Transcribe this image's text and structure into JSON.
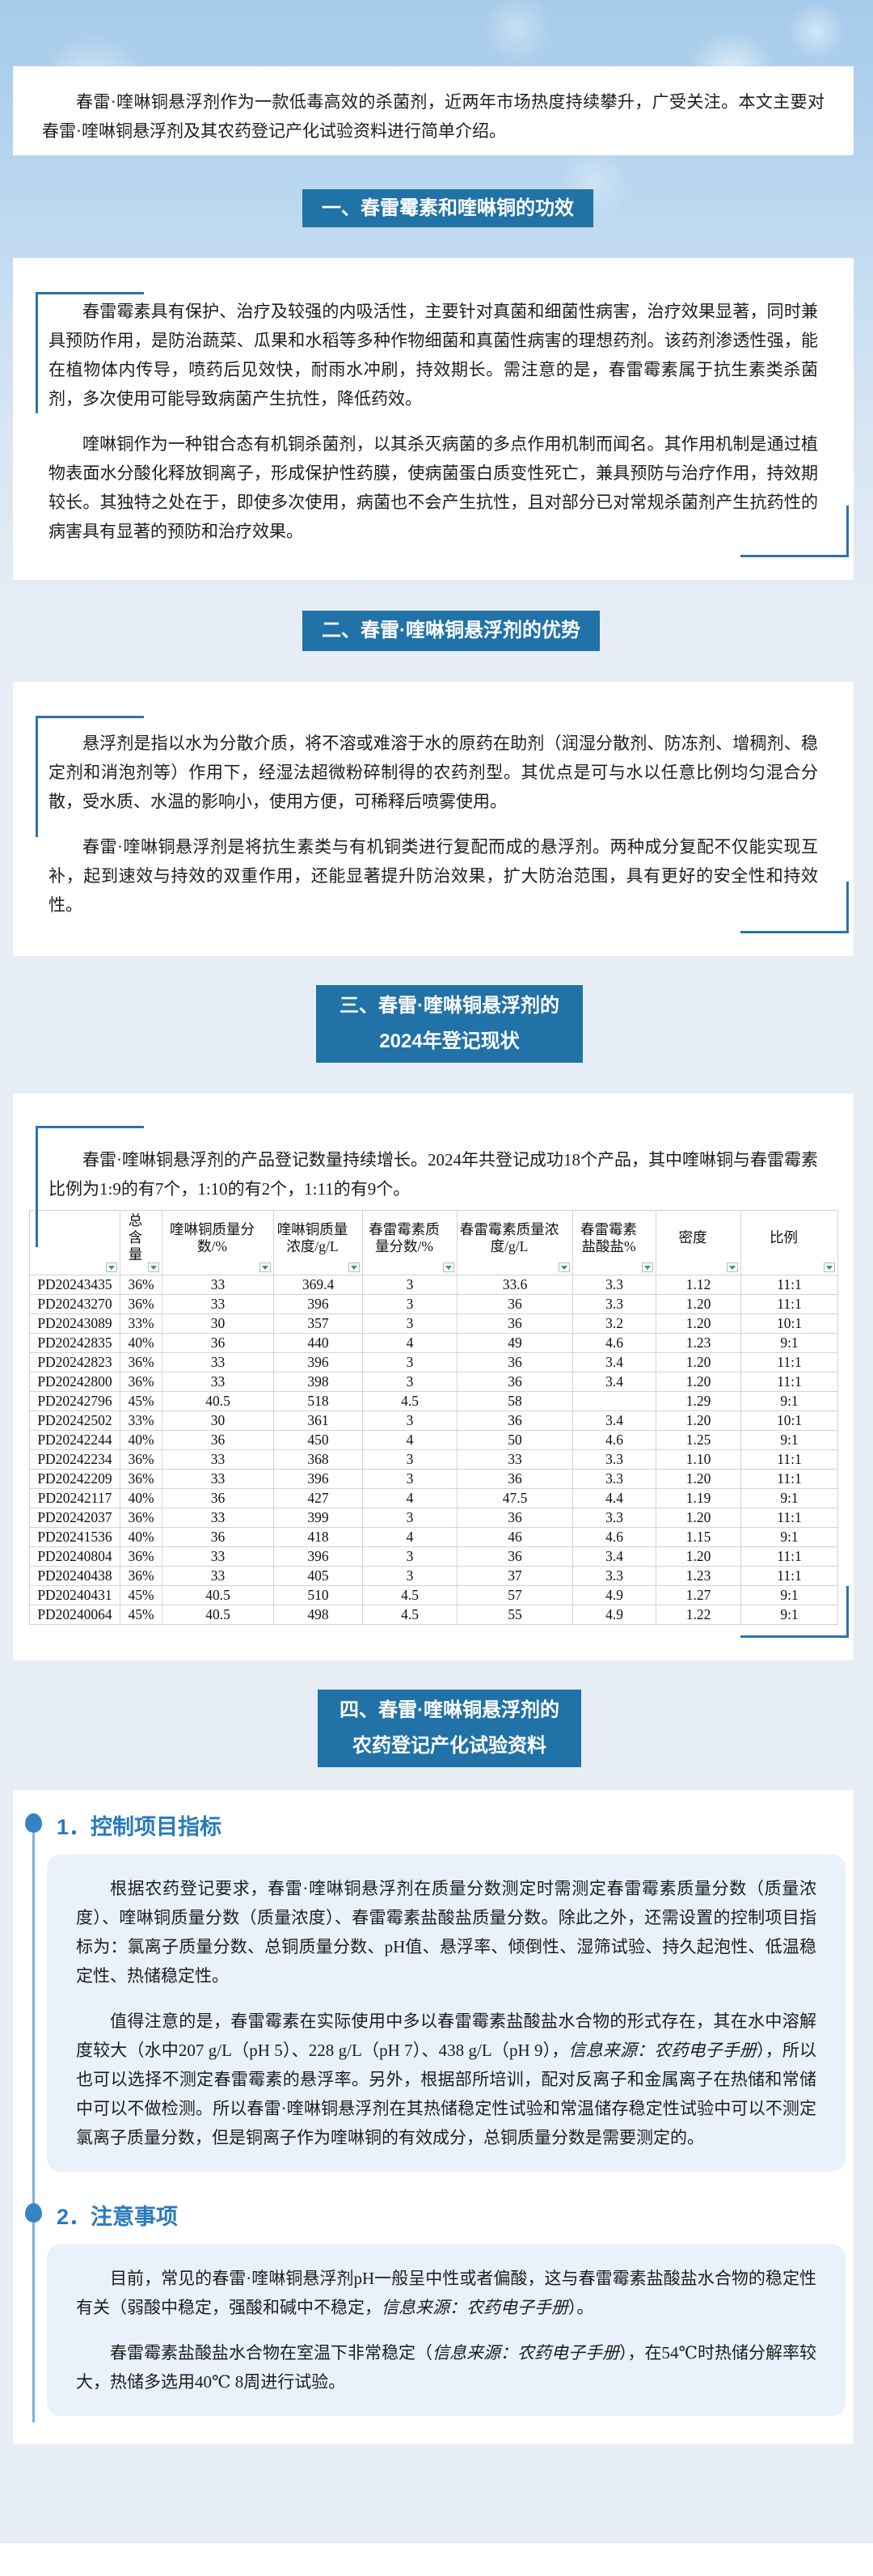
{
  "intro": "春雷·喹啉铜悬浮剂作为一款低毒高效的杀菌剂，近两年市场热度持续攀升，广受关注。本文主要对春雷·喹啉铜悬浮剂及其农药登记产化试验资料进行简单介绍。",
  "colors": {
    "section_header_bg": "#2172a7",
    "subsection_heading": "#2a7abc",
    "subsection_box_bg": "#e9f1fa",
    "corner_bracket": "#2e73a9",
    "filter_triangle": "#2f9e57",
    "hero_top": "#a6cbea",
    "page_bottom": "#e7edf5"
  },
  "icons": {
    "filter_dropdown": "green down-triangle in small square (Excel-style autofilter button)",
    "drop_bullet": "blue water-drop bullet"
  },
  "sections": {
    "s1": {
      "title": "一、春雷霉素和喹啉铜的功效",
      "paragraphs": [
        "春雷霉素具有保护、治疗及较强的内吸活性，主要针对真菌和细菌性病害，治疗效果显著，同时兼具预防作用，是防治蔬菜、瓜果和水稻等多种作物细菌和真菌性病害的理想药剂。该药剂渗透性强，能在植物体内传导，喷药后见效快，耐雨水冲刷，持效期长。需注意的是，春雷霉素属于抗生素类杀菌剂，多次使用可能导致病菌产生抗性，降低药效。",
        "喹啉铜作为一种钳合态有机铜杀菌剂，以其杀灭病菌的多点作用机制而闻名。其作用机制是通过植物表面水分酸化释放铜离子，形成保护性药膜，使病菌蛋白质变性死亡，兼具预防与治疗作用，持效期较长。其独特之处在于，即使多次使用，病菌也不会产生抗性，且对部分已对常规杀菌剂产生抗药性的病害具有显著的预防和治疗效果。"
      ]
    },
    "s2": {
      "title": "二、春雷·喹啉铜悬浮剂的优势",
      "paragraphs": [
        "悬浮剂是指以水为分散介质，将不溶或难溶于水的原药在助剂（润湿分散剂、防冻剂、增稠剂、稳定剂和消泡剂等）作用下，经湿法超微粉碎制得的农药剂型。其优点是可与水以任意比例均匀混合分散，受水质、水温的影响小，使用方便，可稀释后喷雾使用。",
        "春雷·喹啉铜悬浮剂是将抗生素类与有机铜类进行复配而成的悬浮剂。两种成分复配不仅能实现互补，起到速效与持效的双重作用，还能显著提升防治效果，扩大防治范围，具有更好的安全性和持效性。"
      ]
    },
    "s3": {
      "title_line1": "三、春雷·喹啉铜悬浮剂的",
      "title_line2": "2024年登记现状",
      "paragraphs": [
        "春雷·喹啉铜悬浮剂的产品登记数量持续增长。2024年共登记成功18个产品，其中喹啉铜与春雷霉素比例为1:9的有7个，1:10的有2个，1:11的有9个。"
      ],
      "table": {
        "headers": [
          "",
          "总含量",
          "喹啉铜质量分数/%",
          "喹啉铜质量浓度/g/L",
          "春雷霉素质量分数/%",
          "春雷霉素质量浓度/g/L",
          "春雷霉素盐酸盐%",
          "密度",
          "比例"
        ],
        "rows": [
          [
            "PD20243435",
            "36%",
            "33",
            "369.4",
            "3",
            "33.6",
            "3.3",
            "1.12",
            "11:1"
          ],
          [
            "PD20243270",
            "36%",
            "33",
            "396",
            "3",
            "36",
            "3.3",
            "1.20",
            "11:1"
          ],
          [
            "PD20243089",
            "33%",
            "30",
            "357",
            "3",
            "36",
            "3.2",
            "1.20",
            "10:1"
          ],
          [
            "PD20242835",
            "40%",
            "36",
            "440",
            "4",
            "49",
            "4.6",
            "1.23",
            "9:1"
          ],
          [
            "PD20242823",
            "36%",
            "33",
            "396",
            "3",
            "36",
            "3.4",
            "1.20",
            "11:1"
          ],
          [
            "PD20242800",
            "36%",
            "33",
            "398",
            "3",
            "36",
            "3.4",
            "1.20",
            "11:1"
          ],
          [
            "PD20242796",
            "45%",
            "40.5",
            "518",
            "4.5",
            "58",
            "",
            "1.29",
            "9:1"
          ],
          [
            "PD20242502",
            "33%",
            "30",
            "361",
            "3",
            "36",
            "3.4",
            "1.20",
            "10:1"
          ],
          [
            "PD20242244",
            "40%",
            "36",
            "450",
            "4",
            "50",
            "4.6",
            "1.25",
            "9:1"
          ],
          [
            "PD20242234",
            "36%",
            "33",
            "368",
            "3",
            "33",
            "3.3",
            "1.10",
            "11:1"
          ],
          [
            "PD20242209",
            "36%",
            "33",
            "396",
            "3",
            "36",
            "3.3",
            "1.20",
            "11:1"
          ],
          [
            "PD20242117",
            "40%",
            "36",
            "427",
            "4",
            "47.5",
            "4.4",
            "1.19",
            "9:1"
          ],
          [
            "PD20242037",
            "36%",
            "33",
            "399",
            "3",
            "36",
            "3.3",
            "1.20",
            "11:1"
          ],
          [
            "PD20241536",
            "40%",
            "36",
            "418",
            "4",
            "46",
            "4.6",
            "1.15",
            "9:1"
          ],
          [
            "PD20240804",
            "36%",
            "33",
            "396",
            "3",
            "36",
            "3.4",
            "1.20",
            "11:1"
          ],
          [
            "PD20240438",
            "36%",
            "33",
            "405",
            "3",
            "37",
            "3.3",
            "1.23",
            "11:1"
          ],
          [
            "PD20240431",
            "45%",
            "40.5",
            "510",
            "4.5",
            "57",
            "4.9",
            "1.27",
            "9:1"
          ],
          [
            "PD20240064",
            "45%",
            "40.5",
            "498",
            "4.5",
            "55",
            "4.9",
            "1.22",
            "9:1"
          ]
        ]
      }
    },
    "s4": {
      "title_line1": "四、春雷·喹啉铜悬浮剂的",
      "title_line2": "农药登记产化试验资料",
      "subsections": [
        {
          "heading": "1．控制项目指标",
          "paragraphs": [
            [
              {
                "t": "根据农药登记要求，春雷·喹啉铜悬浮剂在质量分数测定时需测定春雷霉素质量分数（质量浓度）、喹啉铜质量分数（质量浓度）、春雷霉素盐酸盐质量分数。除此之外，还需设置的控制项目指标为：氯离子质量分数、总铜质量分数、pH值、悬浮率、倾倒性、湿筛试验、持久起泡性、低温稳定性、热储稳定性。"
              }
            ],
            [
              {
                "t": "值得注意的是，春雷霉素在实际使用中多以春雷霉素盐酸盐水合物的形式存在，其在水中溶解度较大（水中207 g/L（pH 5）、228 g/L（pH 7）、438 g/L（pH 9），"
              },
              {
                "t": "信息来源：农药电子手册",
                "i": true
              },
              {
                "t": "），所以也可以选择不测定春雷霉素的悬浮率。另外，根据部所培训，配对反离子和金属离子在热储和常储中可以不做检测。所以春雷·喹啉铜悬浮剂在其热储稳定性试验和常温储存稳定性试验中可以不测定氯离子质量分数，但是铜离子作为喹啉铜的有效成分，总铜质量分数是需要测定的。"
              }
            ]
          ]
        },
        {
          "heading": "2．注意事项",
          "paragraphs": [
            [
              {
                "t": "目前，常见的春雷·喹啉铜悬浮剂pH一般呈中性或者偏酸，这与春雷霉素盐酸盐水合物的稳定性有关（弱酸中稳定，强酸和碱中不稳定，"
              },
              {
                "t": "信息来源：农药电子手册",
                "i": true
              },
              {
                "t": "）。"
              }
            ],
            [
              {
                "t": "春雷霉素盐酸盐水合物在室温下非常稳定（"
              },
              {
                "t": "信息来源：农药电子手册",
                "i": true
              },
              {
                "t": "），在54℃时热储分解率较大，热储多选用40℃ 8周进行试验。"
              }
            ]
          ]
        }
      ]
    }
  }
}
